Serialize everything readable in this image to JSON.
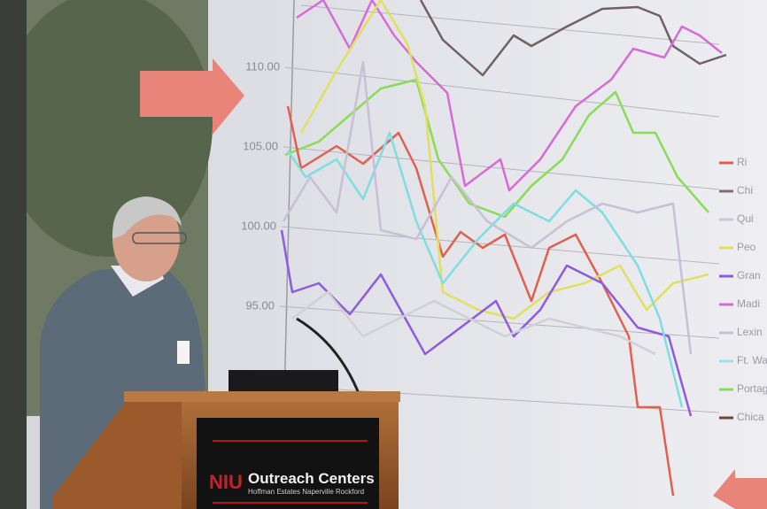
{
  "slide": {
    "y_tick_labels": [
      "110.00",
      "105.00",
      "100.00",
      "95.00"
    ],
    "legend": [
      "Ri",
      "Chi",
      "Qui",
      "Peo",
      "Gran",
      "Madi",
      "Lexin",
      "Ft. Wa",
      "Portag",
      "Chica"
    ]
  },
  "podium": {
    "logo": "NIU",
    "title": "Outreach Centers",
    "locations": "Hoffman Estates  Naperville  Rockford"
  }
}
